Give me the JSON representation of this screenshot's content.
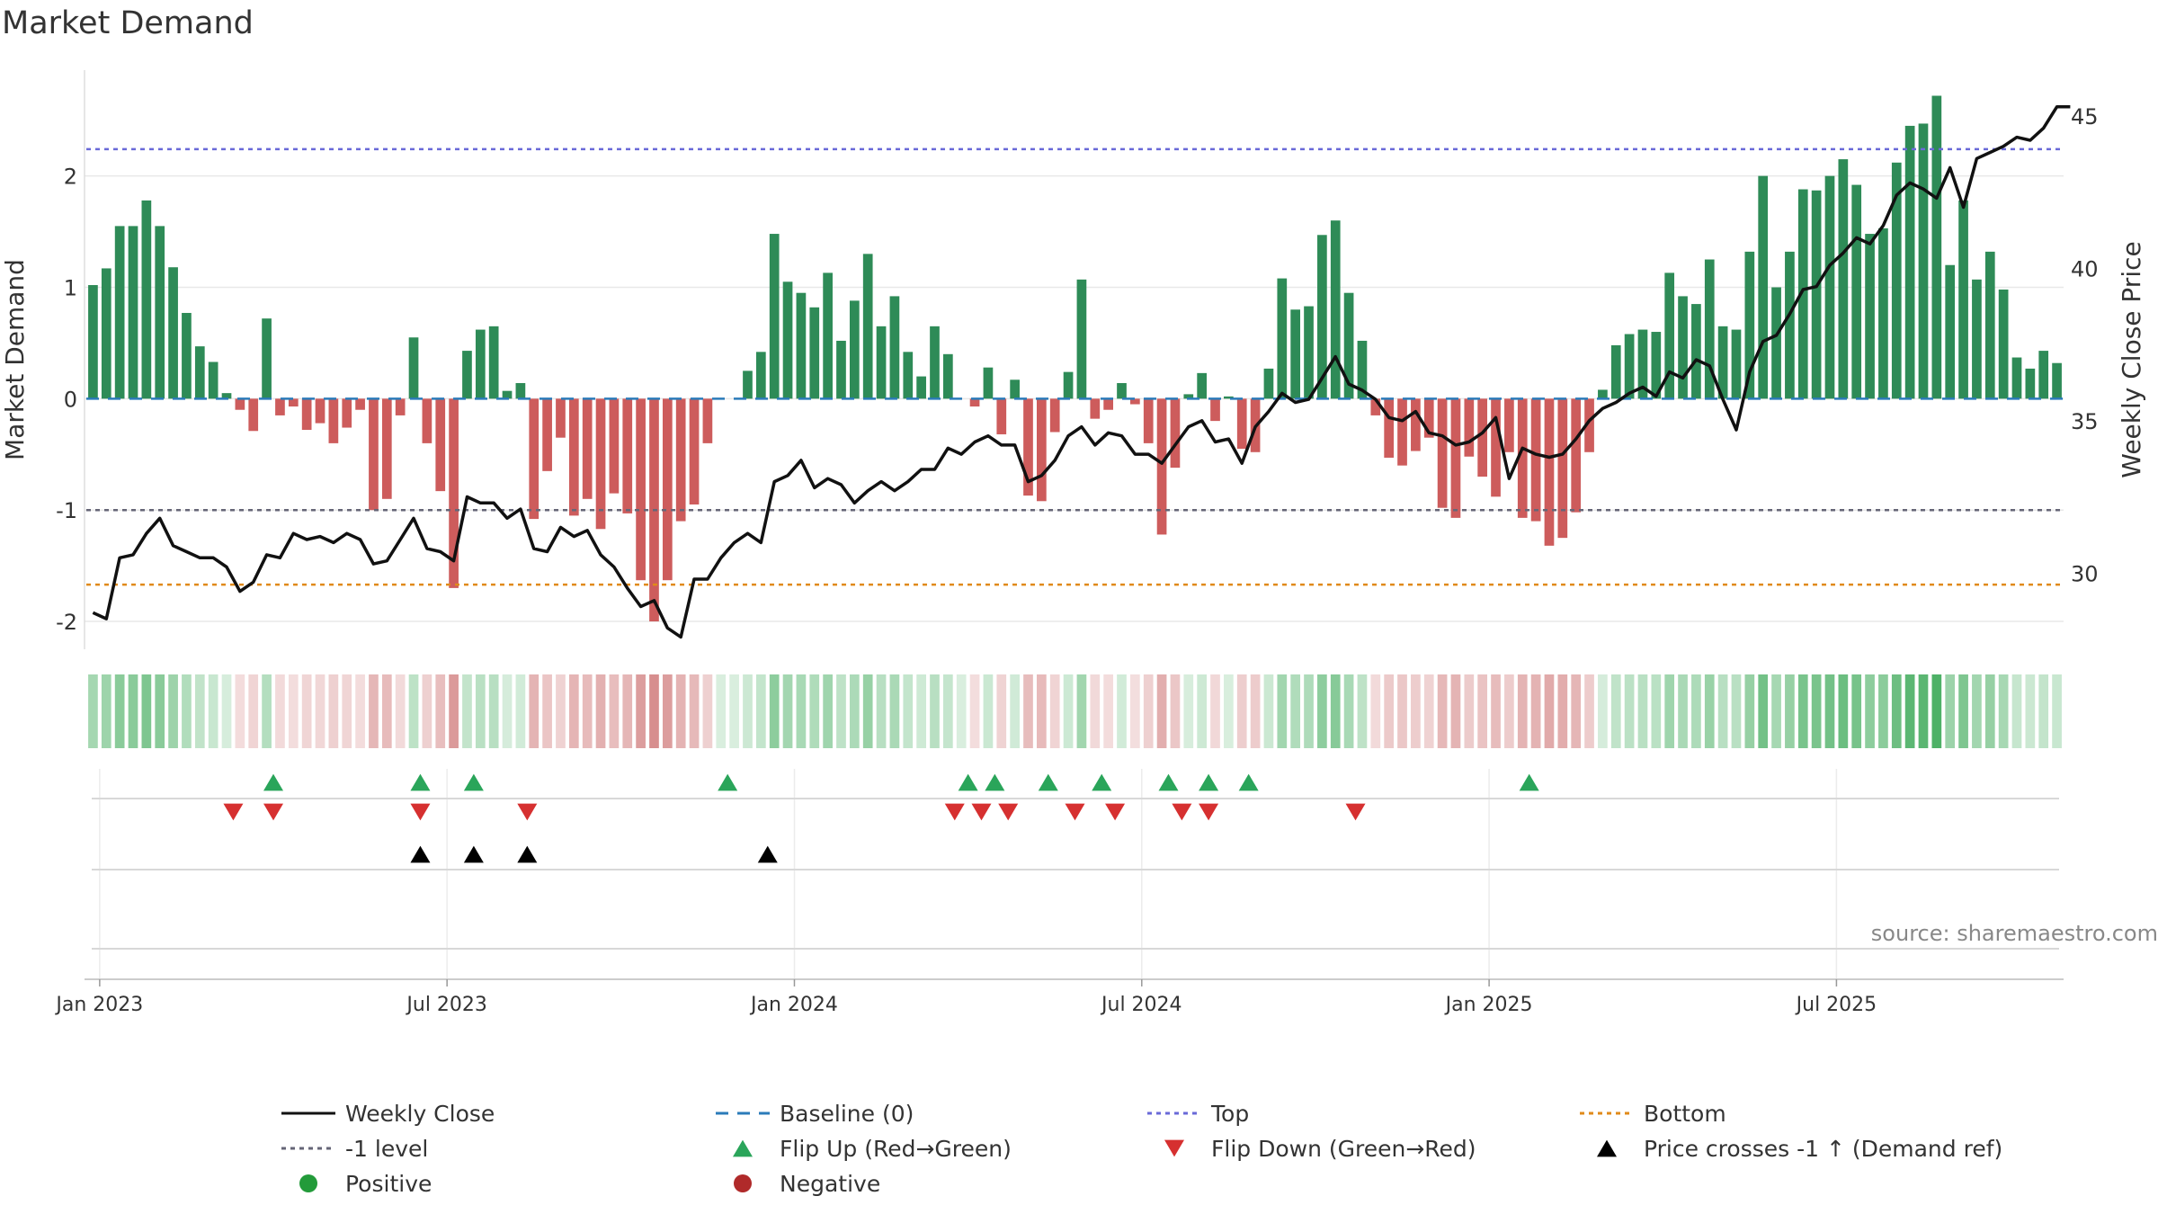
{
  "chart_data": {
    "type": "bar",
    "title": "Market Demand",
    "ylabel": "Market Demand",
    "y2label": "Weekly Close Price",
    "ylim": [
      -2.25,
      2.95
    ],
    "y2lim": [
      27.5,
      46.5
    ],
    "yticks": [
      2,
      1,
      0,
      -1,
      -2
    ],
    "y2ticks": [
      45,
      40,
      35,
      30
    ],
    "x_ticks": [
      {
        "label": "Jan 2023",
        "week": 1
      },
      {
        "label": "Jul 2023",
        "week": 27
      },
      {
        "label": "Jan 2024",
        "week": 53
      },
      {
        "label": "Jul 2024",
        "week": 79
      },
      {
        "label": "Jan 2025",
        "week": 105
      },
      {
        "label": "Jul 2025",
        "week": 131
      }
    ],
    "series": [
      {
        "name": "Market Demand",
        "type": "bar",
        "values": [
          1.02,
          1.17,
          1.55,
          1.55,
          1.78,
          1.55,
          1.18,
          0.77,
          0.47,
          0.33,
          0.05,
          -0.1,
          -0.29,
          0.72,
          -0.15,
          -0.07,
          -0.28,
          -0.22,
          -0.4,
          -0.26,
          -0.1,
          -1.0,
          -0.9,
          -0.15,
          0.55,
          -0.4,
          -0.83,
          -1.7,
          0.43,
          0.62,
          0.65,
          0.07,
          0.14,
          -1.08,
          -0.65,
          -0.35,
          -1.05,
          -0.9,
          -1.17,
          -0.85,
          -1.03,
          -1.63,
          -2.0,
          -1.63,
          -1.1,
          -0.95,
          -0.4,
          0,
          0,
          0.25,
          0.42,
          1.48,
          1.05,
          0.95,
          0.82,
          1.13,
          0.52,
          0.88,
          1.3,
          0.65,
          0.92,
          0.42,
          0.2,
          0.65,
          0.4,
          0,
          -0.07,
          0.28,
          -0.32,
          0.17,
          -0.87,
          -0.92,
          -0.3,
          0.24,
          1.07,
          -0.18,
          -0.1,
          0.14,
          -0.05,
          -0.4,
          -1.22,
          -0.62,
          0.04,
          0.23,
          -0.2,
          0.02,
          -0.45,
          -0.48,
          0.27,
          1.08,
          0.8,
          0.83,
          1.47,
          1.6,
          0.95,
          0.52,
          -0.15,
          -0.53,
          -0.6,
          -0.47,
          -0.35,
          -0.98,
          -1.07,
          -0.52,
          -0.7,
          -0.88,
          -0.48,
          -1.07,
          -1.1,
          -1.32,
          -1.25,
          -1.02,
          -0.48,
          0.08,
          0.48,
          0.58,
          0.62,
          0.6,
          1.13,
          0.92,
          0.85,
          1.25,
          0.65,
          0.62,
          1.32,
          2.0,
          1.0,
          1.32,
          1.88,
          1.87,
          2.0,
          2.15,
          1.92,
          1.48,
          1.53,
          2.12,
          2.45,
          2.47,
          2.72,
          1.2,
          1.78,
          1.07,
          1.32,
          0.98,
          0.37,
          0.27,
          0.43,
          0.32
        ]
      },
      {
        "name": "Weekly Close",
        "type": "line",
        "values": [
          28.7,
          28.5,
          30.5,
          30.6,
          31.3,
          31.8,
          30.9,
          30.7,
          30.5,
          30.5,
          30.2,
          29.4,
          29.7,
          30.6,
          30.5,
          31.3,
          31.1,
          31.2,
          31.0,
          31.3,
          31.1,
          30.3,
          30.4,
          31.1,
          31.8,
          30.8,
          30.7,
          30.4,
          32.5,
          32.3,
          32.3,
          31.8,
          32.1,
          30.8,
          30.7,
          31.5,
          31.2,
          31.4,
          30.6,
          30.2,
          29.5,
          28.9,
          29.1,
          28.2,
          27.9,
          29.8,
          29.8,
          30.5,
          31.0,
          31.3,
          31.0,
          33.0,
          33.2,
          33.7,
          32.8,
          33.1,
          32.9,
          32.3,
          32.7,
          33.0,
          32.7,
          33.0,
          33.4,
          33.4,
          34.1,
          33.9,
          34.3,
          34.5,
          34.2,
          34.2,
          33.0,
          33.2,
          33.7,
          34.5,
          34.8,
          34.2,
          34.6,
          34.5,
          33.9,
          33.9,
          33.6,
          34.2,
          34.8,
          35.0,
          34.3,
          34.4,
          33.6,
          34.8,
          35.3,
          35.9,
          35.6,
          35.7,
          36.4,
          37.1,
          36.2,
          36.0,
          35.7,
          35.1,
          35.0,
          35.3,
          34.6,
          34.5,
          34.2,
          34.3,
          34.6,
          35.1,
          33.1,
          34.1,
          33.9,
          33.8,
          33.9,
          34.4,
          35.0,
          35.4,
          35.6,
          35.9,
          36.1,
          35.8,
          36.6,
          36.4,
          37.0,
          36.8,
          35.7,
          34.7,
          36.6,
          37.6,
          37.8,
          38.5,
          39.3,
          39.4,
          40.1,
          40.5,
          41.0,
          40.8,
          41.4,
          42.4,
          42.8,
          42.6,
          42.3,
          43.3,
          42.0,
          43.6,
          43.8,
          44.0,
          44.3,
          44.2,
          44.6,
          45.3,
          45.3
        ]
      },
      {
        "name": "Baseline (0)",
        "type": "hline",
        "y": 0
      },
      {
        "name": "Top",
        "type": "hline",
        "y": 2.24
      },
      {
        "name": "-1 level",
        "type": "hline",
        "y": -1
      },
      {
        "name": "Bottom",
        "type": "hline",
        "y": -1.67
      }
    ],
    "events": {
      "flip_up_weeks": [
        14,
        25,
        29,
        48,
        66,
        68,
        72,
        76,
        81,
        84,
        87,
        108
      ],
      "flip_down_weeks": [
        11,
        14,
        25,
        33,
        65,
        67,
        69,
        74,
        77,
        82,
        84,
        95
      ],
      "price_cross_weeks": [
        25,
        29,
        33,
        51
      ]
    },
    "legend": {
      "position": "bottom",
      "items": [
        {
          "label": "Weekly Close",
          "kind": "line-solid",
          "color": "#111111"
        },
        {
          "label": "Baseline (0)",
          "kind": "line-dash",
          "color": "#2b7bb9"
        },
        {
          "label": "Top",
          "kind": "line-dot",
          "color": "#6a6ad8"
        },
        {
          "label": "Bottom",
          "kind": "line-dot",
          "color": "#e08a1a"
        },
        {
          "label": "-1 level",
          "kind": "line-dot",
          "color": "#666677"
        },
        {
          "label": "Flip Up (Red→Green)",
          "kind": "tri-up",
          "color": "#2aa55a"
        },
        {
          "label": "Flip Down (Green→Red)",
          "kind": "tri-down",
          "color": "#d63030"
        },
        {
          "label": "Price crosses -1 ↑ (Demand ref)",
          "kind": "tri-up",
          "color": "#000000"
        },
        {
          "label": "Positive",
          "kind": "dot",
          "color": "#239b3a"
        },
        {
          "label": "Negative",
          "kind": "dot",
          "color": "#b02a2a"
        }
      ]
    },
    "colors": {
      "positive": "#2e8b57",
      "negative": "#cd5c5c",
      "heat_positive": "#3faa5a",
      "heat_negative": "#c86464",
      "price": "#111111",
      "baseline": "#2b7bb9",
      "top": "#6a6ad8",
      "minus_one": "#666677",
      "bottom": "#e08a1a",
      "flip_up": "#2aa55a",
      "flip_down": "#d63030",
      "cross": "#000000",
      "grid": "#e8e8e8"
    }
  },
  "source_label": "source: sharemaestro.com"
}
